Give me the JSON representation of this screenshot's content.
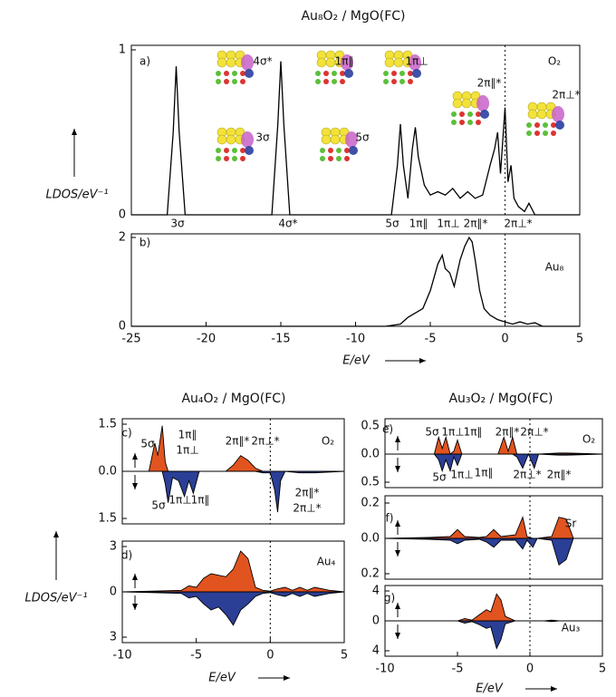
{
  "chart_data": [
    {
      "type": "line",
      "title": "Au₈O₂ / MgO(FC)",
      "ylabel": "LDOS/eV⁻¹",
      "color": "#000000",
      "x": [
        -25,
        -22.6,
        -22.2,
        -22,
        -21.8,
        -21.4,
        -15.6,
        -15.2,
        -15,
        -14.8,
        -14.4,
        -7.6,
        -7.2,
        -7,
        -6.8,
        -6.5,
        -6.2,
        -6,
        -5.8,
        -5.4,
        -5,
        -4.5,
        -4,
        -3.5,
        -3,
        -2.5,
        -2,
        -1.5,
        -1,
        -0.7,
        -0.5,
        -0.3,
        0,
        0.2,
        0.4,
        0.6,
        0.9,
        1.3,
        1.6,
        2,
        5
      ],
      "values": [
        0,
        0,
        0.5,
        0.9,
        0.5,
        0,
        0,
        0.55,
        0.93,
        0.55,
        0,
        0,
        0.3,
        0.55,
        0.3,
        0.1,
        0.4,
        0.53,
        0.35,
        0.18,
        0.12,
        0.14,
        0.12,
        0.16,
        0.1,
        0.14,
        0.1,
        0.12,
        0.3,
        0.4,
        0.5,
        0.25,
        0.65,
        0.2,
        0.3,
        0.1,
        0.05,
        0.02,
        0.07,
        0,
        0
      ],
      "xlim": [
        -25,
        5
      ],
      "ylim": [
        0,
        1
      ],
      "yticks": [
        0,
        1
      ],
      "annotations": [
        "a)",
        "O₂",
        "3σ",
        "4σ*",
        "5σ",
        "1π∥",
        "1π⊥",
        "2π∥*",
        "2π⊥*",
        "4σ*",
        "3σ",
        "1π∥",
        "1π⊥",
        "5σ",
        "2π∥*",
        "2π⊥*"
      ]
    },
    {
      "type": "line",
      "xlabel": "E/eV",
      "color": "#000000",
      "x": [
        -25,
        -8,
        -7,
        -6.5,
        -6,
        -5.5,
        -5,
        -4.5,
        -4.2,
        -4,
        -3.7,
        -3.4,
        -3,
        -2.7,
        -2.4,
        -2.2,
        -2,
        -1.7,
        -1.4,
        -1,
        -0.5,
        0,
        0.5,
        1,
        1.5,
        2,
        2.5,
        5
      ],
      "values": [
        0,
        0,
        0.05,
        0.2,
        0.3,
        0.4,
        0.8,
        1.4,
        1.6,
        1.3,
        1.2,
        0.9,
        1.5,
        1.8,
        2.0,
        1.9,
        1.5,
        0.8,
        0.4,
        0.25,
        0.15,
        0.1,
        0.05,
        0.1,
        0.05,
        0.08,
        0,
        0
      ],
      "xlim": [
        -25,
        5
      ],
      "ylim": [
        0,
        2
      ],
      "yticks": [
        0,
        2
      ],
      "xticks": [
        -25,
        -20,
        -15,
        -10,
        -5,
        0,
        5
      ],
      "annotations": [
        "b)",
        "Au₈"
      ]
    },
    {
      "type": "area",
      "title": "Au₄O₂ / MgO(FC)",
      "ylabel": "LDOS/eV⁻¹",
      "x": [
        -10,
        -8.2,
        -7.8,
        -7.6,
        -7.3,
        -7.1,
        -6.9,
        -6.6,
        -6.2,
        -5.8,
        -5.5,
        -5.2,
        -4.8,
        -3,
        -2.5,
        -2,
        -1.5,
        -1,
        -0.5,
        0,
        0.3,
        0.5,
        0.7,
        1,
        2,
        3,
        5
      ],
      "series": [
        {
          "color": "#e2541f",
          "values": [
            0,
            0,
            0.9,
            0.5,
            1.45,
            0.3,
            0,
            0,
            0,
            0,
            0,
            0,
            0,
            0,
            0.2,
            0.5,
            0.35,
            0.1,
            0,
            0,
            0,
            0,
            0,
            0,
            0,
            0,
            0
          ]
        },
        {
          "color": "#2b3f96",
          "values": [
            0,
            0,
            0,
            0,
            0,
            -0.4,
            -1.0,
            -0.2,
            -0.3,
            -0.8,
            -0.3,
            -0.7,
            0,
            0,
            0,
            0,
            0,
            0,
            -0.05,
            -0.05,
            -0.6,
            -1.3,
            -0.3,
            0,
            -0.05,
            -0.05,
            0
          ]
        }
      ],
      "xlim": [
        -10,
        5
      ],
      "ylim": [
        -1.5,
        1.5
      ],
      "yticks": [
        {
          "value": -1.5,
          "label": "1.5"
        },
        {
          "value": 0,
          "label": "0.0"
        },
        1.5
      ],
      "annotations": [
        "c)",
        "5σ",
        "1π∥",
        "1π⊥",
        "2π∥*",
        "2π⊥*",
        "O₂",
        "5σ",
        "1π⊥",
        "1π∥",
        "2π∥*",
        "2π⊥*"
      ]
    },
    {
      "type": "area",
      "xlabel": "E/eV",
      "x": [
        -10,
        -8,
        -6,
        -5.5,
        -5,
        -4.5,
        -4,
        -3.5,
        -3,
        -2.5,
        -2,
        -1.5,
        -1,
        -0.5,
        0,
        0.5,
        1,
        1.5,
        2,
        2.5,
        3,
        4,
        5
      ],
      "series": [
        {
          "color": "#e2541f",
          "values": [
            0,
            0.05,
            0.1,
            0.4,
            0.3,
            0.9,
            1.2,
            1.1,
            1.0,
            1.5,
            2.7,
            2.2,
            0.3,
            0.1,
            0.05,
            0.2,
            0.3,
            0.1,
            0.3,
            0.1,
            0.3,
            0.1,
            0
          ]
        },
        {
          "color": "#2b3f96",
          "values": [
            0,
            -0.05,
            -0.1,
            -0.4,
            -0.3,
            -0.8,
            -1.2,
            -1.0,
            -1.5,
            -2.2,
            -1.2,
            -0.8,
            -0.3,
            -0.1,
            -0.05,
            -0.2,
            -0.3,
            -0.1,
            -0.3,
            -0.1,
            -0.3,
            -0.1,
            0
          ]
        }
      ],
      "xlim": [
        -10,
        5
      ],
      "ylim": [
        -3,
        3
      ],
      "yticks": [
        {
          "value": -3,
          "label": "3"
        },
        0,
        3
      ],
      "xticks": [
        -10,
        -5,
        0,
        5
      ],
      "annotations": [
        "d)",
        "Au₄"
      ]
    },
    {
      "type": "area",
      "title": "Au₃O₂ / MgO(FC)",
      "x": [
        -10,
        -6.6,
        -6.3,
        -6.05,
        -5.8,
        -5.5,
        -5.25,
        -5,
        -4.7,
        -2.2,
        -1.8,
        -1.5,
        -1.2,
        -0.9,
        -0.5,
        -0.1,
        0.3,
        0.6,
        2,
        2.5,
        5
      ],
      "series": [
        {
          "color": "#e2541f",
          "values": [
            0,
            0,
            0.3,
            0.1,
            0.3,
            0,
            0.05,
            0.25,
            0,
            0,
            0.3,
            0.05,
            0.3,
            0,
            0,
            0,
            0,
            0,
            0.02,
            0.02,
            0
          ]
        },
        {
          "color": "#2b3f96",
          "values": [
            0,
            0,
            -0.1,
            -0.3,
            -0.1,
            -0.3,
            -0.05,
            -0.2,
            0,
            0,
            0,
            0,
            0,
            -0.05,
            -0.25,
            0,
            -0.25,
            0,
            -0.02,
            -0.02,
            0
          ]
        }
      ],
      "xlim": [
        -10,
        5
      ],
      "ylim": [
        -0.5,
        0.5
      ],
      "yticks": [
        {
          "value": -0.5,
          "label": "0.5"
        },
        {
          "value": 0,
          "label": "0.0"
        },
        0.5
      ],
      "annotations": [
        "e)",
        "5σ",
        "1π⊥",
        "1π∥",
        "2π∥*",
        "2π⊥*",
        "O₂",
        "5σ",
        "1π⊥",
        "1π∥",
        "2π⊥*",
        "2π∥*"
      ]
    },
    {
      "type": "area",
      "x": [
        -10,
        -7,
        -5.5,
        -5,
        -4.5,
        -3.5,
        -3,
        -2.5,
        -2,
        -1,
        -0.5,
        -0.2,
        0.2,
        0.5,
        1.5,
        2,
        2.5,
        3,
        5
      ],
      "series": [
        {
          "color": "#e2541f",
          "values": [
            0,
            0.005,
            0.01,
            0.05,
            0.01,
            0.005,
            0.01,
            0.05,
            0.01,
            0.02,
            0.12,
            0.01,
            0,
            0,
            0.01,
            0.12,
            0.11,
            0,
            0
          ]
        },
        {
          "color": "#2b3f96",
          "values": [
            0,
            -0.005,
            -0.01,
            -0.03,
            -0.01,
            -0.005,
            -0.02,
            -0.05,
            -0.01,
            -0.01,
            -0.06,
            -0.01,
            -0.05,
            0,
            -0.01,
            -0.15,
            -0.12,
            0,
            0
          ]
        }
      ],
      "xlim": [
        -10,
        5
      ],
      "ylim": [
        -0.2,
        0.2
      ],
      "yticks": [
        {
          "value": -0.2,
          "label": "0.2"
        },
        {
          "value": 0,
          "label": "0.0"
        },
        0.2
      ],
      "annotations": [
        "f)",
        "Sr"
      ]
    },
    {
      "type": "area",
      "xlabel": "E/eV",
      "x": [
        -10,
        -5,
        -4.5,
        -4,
        -3.5,
        -3,
        -2.7,
        -2.3,
        -2,
        -1.7,
        -1,
        0,
        1,
        1.5,
        2,
        5
      ],
      "series": [
        {
          "color": "#e2541f",
          "values": [
            0,
            0,
            0.3,
            0.1,
            0.8,
            1.5,
            1.2,
            3.6,
            2.8,
            0.6,
            0,
            0,
            0,
            0.1,
            0,
            0
          ]
        },
        {
          "color": "#2b3f96",
          "values": [
            0,
            0,
            -0.3,
            -0.1,
            -0.5,
            -1.0,
            -0.8,
            -3.7,
            -2.5,
            -0.4,
            0,
            0,
            0,
            -0.1,
            0,
            0
          ]
        }
      ],
      "xlim": [
        -10,
        5
      ],
      "ylim": [
        -4,
        4
      ],
      "yticks": [
        {
          "value": -4,
          "label": "4"
        },
        0,
        4
      ],
      "xticks": [
        -10,
        -5,
        0,
        5
      ],
      "annotations": [
        "g)",
        "Au₃"
      ]
    }
  ]
}
